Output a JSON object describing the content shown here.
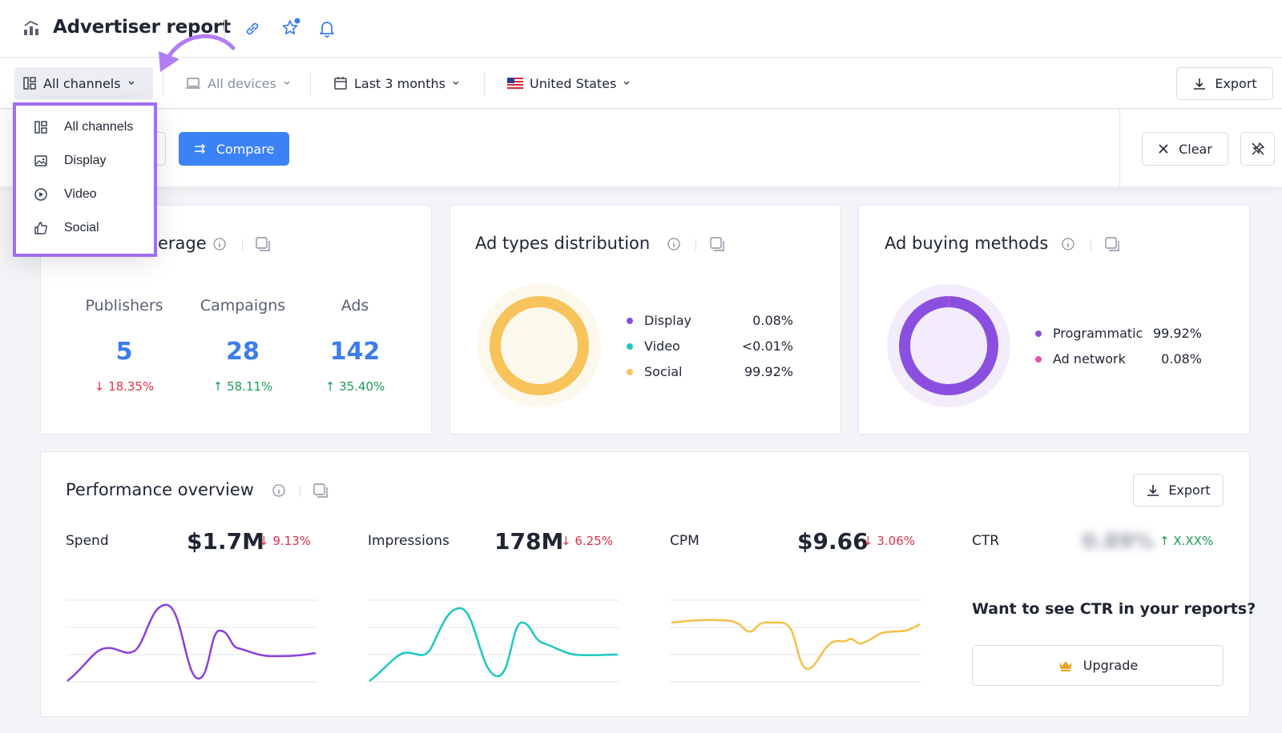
{
  "header": {
    "title": "Advertiser report"
  },
  "filters": {
    "channels": "All channels",
    "devices": "All devices",
    "period": "Last 3 months",
    "country": "United States",
    "export": "Export"
  },
  "compare_row": {
    "compare": "Compare",
    "clear": "Clear"
  },
  "channel_dropdown": {
    "items": [
      {
        "label": "All channels",
        "icon": "grid-icon"
      },
      {
        "label": "Display",
        "icon": "image-icon"
      },
      {
        "label": "Video",
        "icon": "play-circle-icon"
      },
      {
        "label": "Social",
        "icon": "thumbs-up-icon"
      }
    ]
  },
  "coverage_card": {
    "title_fragment": "erage",
    "metrics": [
      {
        "label": "Publishers",
        "value": "5",
        "change": "18.35%",
        "direction": "down"
      },
      {
        "label": "Campaigns",
        "value": "28",
        "change": "58.11%",
        "direction": "up"
      },
      {
        "label": "Ads",
        "value": "142",
        "change": "35.40%",
        "direction": "up"
      }
    ]
  },
  "ad_types_card": {
    "title": "Ad types distribution",
    "legend": [
      {
        "label": "Display",
        "pct": "0.08%",
        "color": "#8b4fe0"
      },
      {
        "label": "Video",
        "pct": "<0.01%",
        "color": "#1cc8c0"
      },
      {
        "label": "Social",
        "pct": "99.92%",
        "color": "#f8c35a"
      }
    ]
  },
  "buying_card": {
    "title": "Ad buying methods",
    "legend": [
      {
        "label": "Programmatic",
        "pct": "99.92%",
        "color": "#8b4fe0"
      },
      {
        "label": "Ad network",
        "pct": "0.08%",
        "color": "#f04fa8"
      }
    ]
  },
  "performance": {
    "title": "Performance overview",
    "export": "Export",
    "metrics": [
      {
        "label": "Spend",
        "value": "$1.7M",
        "change": "9.13%",
        "direction": "down",
        "color": "#8b3fe0"
      },
      {
        "label": "Impressions",
        "value": "178M",
        "change": "6.25%",
        "direction": "down",
        "color": "#1cc8c0"
      },
      {
        "label": "CPM",
        "value": "$9.66",
        "change": "3.06%",
        "direction": "down",
        "color": "#f5c04a"
      }
    ],
    "ctr": {
      "label": "CTR",
      "value_blurred": "0.89%",
      "change": "X.XX%",
      "direction": "up"
    },
    "upsell_text": "Want to see CTR in your reports?",
    "upgrade": "Upgrade"
  },
  "colors": {
    "accent": "#3b82f6",
    "highlight": "#a06ef2",
    "down": "#e0314b",
    "up": "#1c9e55"
  }
}
